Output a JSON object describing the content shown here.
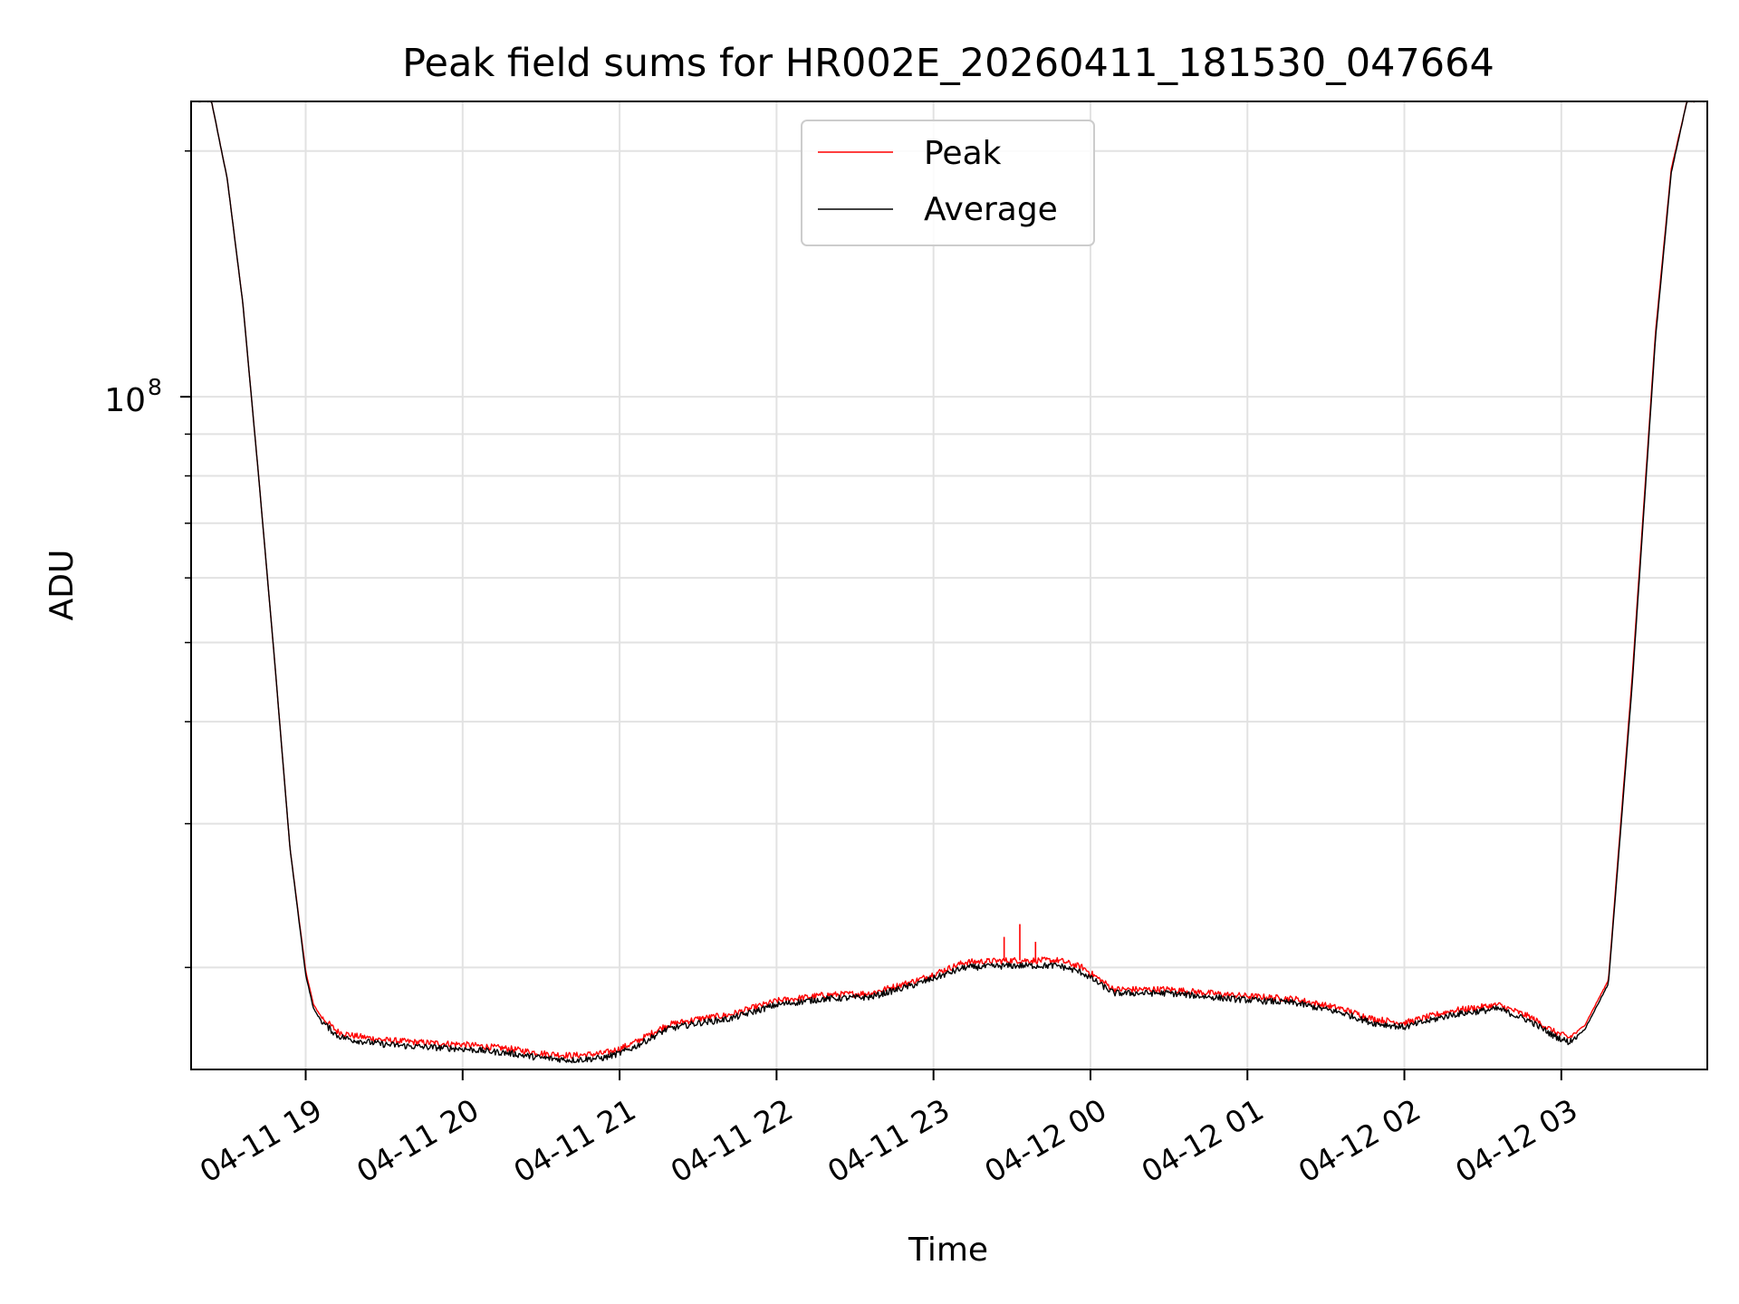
{
  "chart_data": {
    "type": "line",
    "title": "Peak field sums for HR002E_20260411_181530_047664",
    "xlabel": "Time",
    "ylabel": "ADU",
    "yscale": "log",
    "ylim": [
      15000000,
      230000000
    ],
    "xlim_hours": [
      18.27,
      27.93
    ],
    "grid": true,
    "legend_position": "upper center",
    "x_ticks": [
      {
        "hour": 19,
        "label": "04-11 19"
      },
      {
        "hour": 20,
        "label": "04-11 20"
      },
      {
        "hour": 21,
        "label": "04-11 21"
      },
      {
        "hour": 22,
        "label": "04-11 22"
      },
      {
        "hour": 23,
        "label": "04-11 23"
      },
      {
        "hour": 24,
        "label": "04-12 00"
      },
      {
        "hour": 25,
        "label": "04-12 01"
      },
      {
        "hour": 26,
        "label": "04-12 02"
      },
      {
        "hour": 27,
        "label": "04-12 03"
      }
    ],
    "y_major_ticks": [
      {
        "value": 100000000,
        "base": "10",
        "exponent": "8"
      }
    ],
    "y_minor_ticks": [
      20000000,
      30000000,
      40000000,
      50000000,
      60000000,
      70000000,
      80000000,
      90000000,
      200000000
    ],
    "x_time_hours": [
      18.27,
      18.4,
      18.5,
      18.6,
      18.7,
      18.8,
      18.9,
      19.0,
      19.05,
      19.1,
      19.2,
      19.3,
      19.5,
      19.7,
      20.0,
      20.3,
      20.5,
      20.7,
      20.9,
      21.0,
      21.1,
      21.3,
      21.5,
      21.7,
      22.0,
      22.3,
      22.6,
      22.9,
      23.2,
      23.5,
      23.8,
      23.95,
      24.15,
      24.5,
      24.9,
      25.3,
      25.6,
      25.8,
      26.0,
      26.3,
      26.6,
      26.8,
      26.95,
      27.05,
      27.15,
      27.3,
      27.45,
      27.6,
      27.7,
      27.8,
      27.93
    ],
    "series": [
      {
        "name": "Peak",
        "color": "#ff0000",
        "values": [
          230000000,
          230000000,
          185000000,
          130000000,
          80000000,
          48000000,
          28000000,
          19800000,
          18000000,
          17400000,
          16700000,
          16500000,
          16300000,
          16200000,
          16100000,
          15900000,
          15700000,
          15600000,
          15700000,
          15900000,
          16200000,
          17000000,
          17300000,
          17500000,
          18200000,
          18500000,
          18600000,
          19300000,
          20300000,
          20400000,
          20400000,
          20000000,
          18800000,
          18800000,
          18500000,
          18300000,
          17800000,
          17300000,
          17100000,
          17700000,
          18000000,
          17400000,
          16700000,
          16400000,
          17000000,
          19300000,
          45000000,
          120000000,
          190000000,
          230000000,
          230000000
        ]
      },
      {
        "name": "Average",
        "color": "#000000",
        "values": [
          230000000,
          230000000,
          185000000,
          130000000,
          80000000,
          48000000,
          28000000,
          19600000,
          17800000,
          17200000,
          16500000,
          16300000,
          16100000,
          16000000,
          15900000,
          15700000,
          15500000,
          15400000,
          15500000,
          15700000,
          16000000,
          16800000,
          17100000,
          17300000,
          18000000,
          18300000,
          18400000,
          19100000,
          20000000,
          20100000,
          20100000,
          19700000,
          18600000,
          18600000,
          18300000,
          18100000,
          17600000,
          17100000,
          16900000,
          17500000,
          17800000,
          17200000,
          16500000,
          16200000,
          16800000,
          19100000,
          44000000,
          118000000,
          188000000,
          230000000,
          230000000
        ]
      }
    ],
    "annotations": [
      {
        "series": "Peak",
        "hour": 23.45,
        "value": 21800000,
        "kind": "spike"
      },
      {
        "series": "Peak",
        "hour": 23.55,
        "value": 22600000,
        "kind": "spike"
      },
      {
        "series": "Peak",
        "hour": 23.65,
        "value": 21500000,
        "kind": "spike"
      }
    ]
  }
}
